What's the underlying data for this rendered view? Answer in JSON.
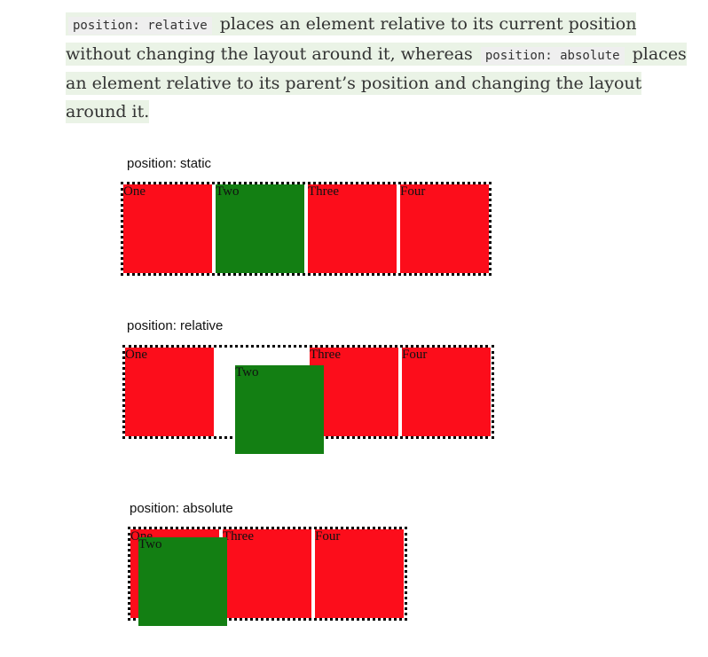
{
  "intro": {
    "code_relative": "position: relative",
    "text_1": "places an element relative to its current position without changing the layout around it, whereas",
    "code_absolute": "position: absolute",
    "text_2": "places an element relative to its parent’s position and changing the layout around it."
  },
  "demos": [
    {
      "label": "position: static",
      "boxes": [
        "One",
        "Two",
        "Three",
        "Four"
      ]
    },
    {
      "label": "position: relative",
      "boxes": [
        "One",
        "Two",
        "Three",
        "Four"
      ]
    },
    {
      "label": "position: absolute",
      "boxes": [
        "One",
        "Two",
        "Three",
        "Four"
      ]
    }
  ],
  "colors": {
    "box_red": "#fc0d1b",
    "box_green": "#137f13",
    "highlight": "#eaf3e6"
  }
}
